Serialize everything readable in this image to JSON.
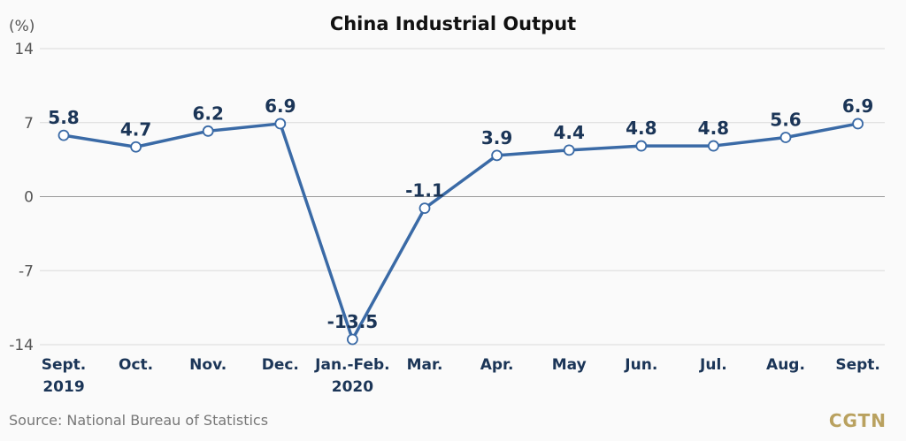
{
  "chart_data": {
    "type": "line",
    "title": "China Industrial Output",
    "unit_label": "(%)",
    "categories": [
      [
        "Sept.",
        "2019"
      ],
      [
        "Oct."
      ],
      [
        "Nov."
      ],
      [
        "Dec."
      ],
      [
        "Jan.-Feb.",
        "2020"
      ],
      [
        "Mar."
      ],
      [
        "Apr."
      ],
      [
        "May"
      ],
      [
        "Jun."
      ],
      [
        "Jul."
      ],
      [
        "Aug."
      ],
      [
        "Sept."
      ]
    ],
    "values": [
      5.8,
      4.7,
      6.2,
      6.9,
      -13.5,
      -1.1,
      3.9,
      4.4,
      4.8,
      4.8,
      5.6,
      6.9
    ],
    "value_labels": [
      "5.8",
      "4.7",
      "6.2",
      "6.9",
      "-13.5",
      "-1.1",
      "3.9",
      "4.4",
      "4.8",
      "4.8",
      "5.6",
      "6.9"
    ],
    "yticks": [
      14,
      7,
      0,
      -7,
      -14
    ],
    "ylim": [
      -14,
      14
    ],
    "grid": true,
    "colors": {
      "line": "#3a6aa6",
      "marker_fill": "#ffffff",
      "grid": "#d9d9d9",
      "zero_line": "#9a9a9a"
    }
  },
  "footer": {
    "source": "Source: National Bureau of Statistics",
    "brand": "CGTN"
  }
}
